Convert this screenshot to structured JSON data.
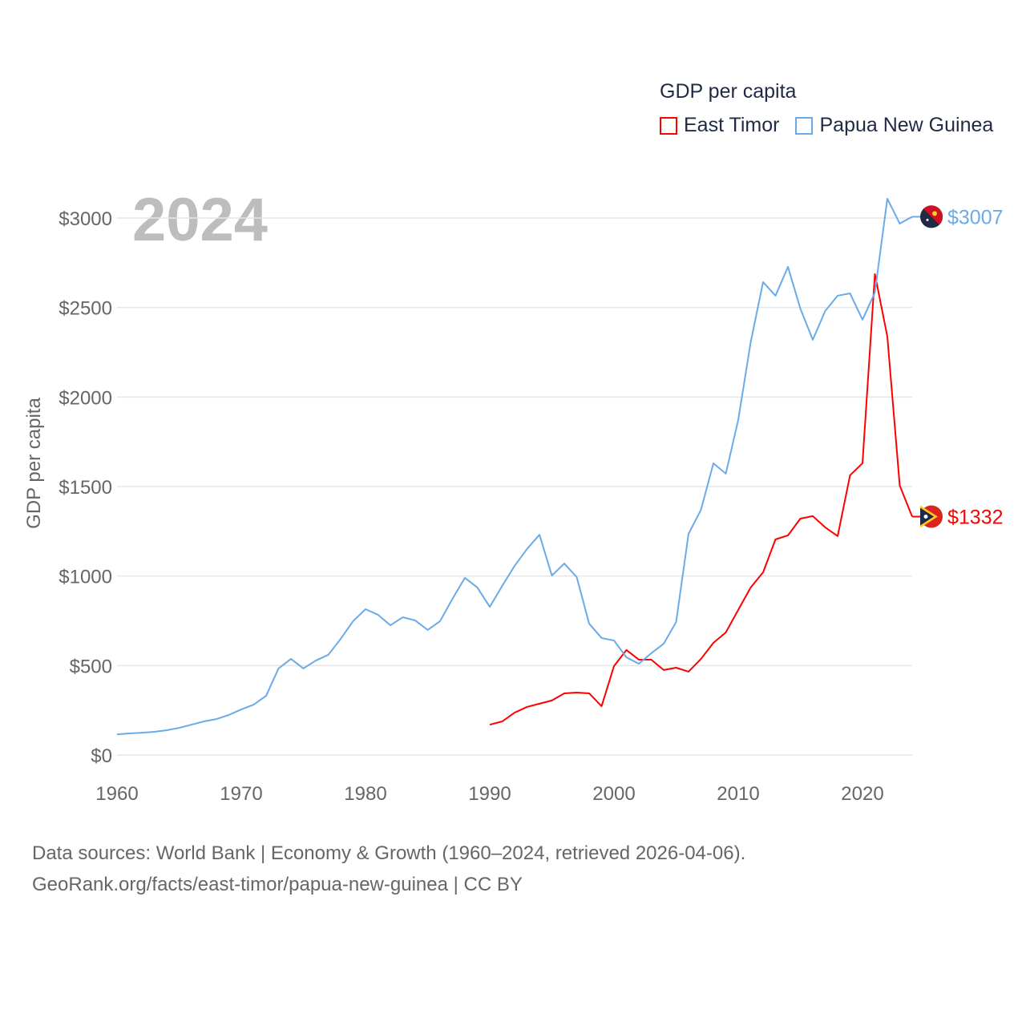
{
  "chart_data": {
    "type": "line",
    "title": "GDP per capita",
    "year_label": "2024",
    "ylabel": "GDP per capita",
    "xlabel": "",
    "xlim": [
      1960,
      2024
    ],
    "ylim": [
      0,
      3000
    ],
    "x_ticks": [
      1960,
      1970,
      1980,
      1990,
      2000,
      2010,
      2020
    ],
    "y_ticks": [
      0,
      500,
      1000,
      1500,
      2000,
      2500,
      3000
    ],
    "y_tick_labels": [
      "$0",
      "$500",
      "$1000",
      "$1500",
      "$2000",
      "$2500",
      "$3000"
    ],
    "grid": true,
    "legend_position": "top-right",
    "series": [
      {
        "name": "East Timor",
        "color": "#ff0000",
        "end_label": "$1332",
        "start_year": 1990,
        "values": [
          170,
          188,
          237,
          269,
          287,
          305,
          345,
          349,
          345,
          273,
          497,
          587,
          533,
          533,
          475,
          488,
          466,
          537,
          627,
          685,
          811,
          936,
          1021,
          1205,
          1227,
          1321,
          1335,
          1272,
          1223,
          1563,
          1630,
          2687,
          2338,
          1505,
          1332
        ]
      },
      {
        "name": "Papua New Guinea",
        "color": "#6aaae8",
        "end_label": "$3007",
        "start_year": 1960,
        "values": [
          116,
          121,
          125,
          130,
          139,
          152,
          170,
          188,
          201,
          224,
          255,
          282,
          331,
          484,
          537,
          484,
          528,
          560,
          649,
          748,
          815,
          784,
          725,
          770,
          752,
          699,
          748,
          873,
          990,
          936,
          828,
          945,
          1057,
          1151,
          1231,
          1003,
          1070,
          994,
          734,
          654,
          640,
          546,
          510,
          569,
          622,
          743,
          1236,
          1370,
          1630,
          1572,
          1872,
          2306,
          2642,
          2566,
          2727,
          2494,
          2320,
          2481,
          2566,
          2579,
          2432,
          2584,
          3108,
          2969,
          3007
        ]
      }
    ]
  },
  "source": {
    "line1": "Data sources: World Bank | Economy & Growth (1960–2024, retrieved 2026-04-06).",
    "line2": "GeoRank.org/facts/east-timor/papua-new-guinea | CC BY"
  }
}
